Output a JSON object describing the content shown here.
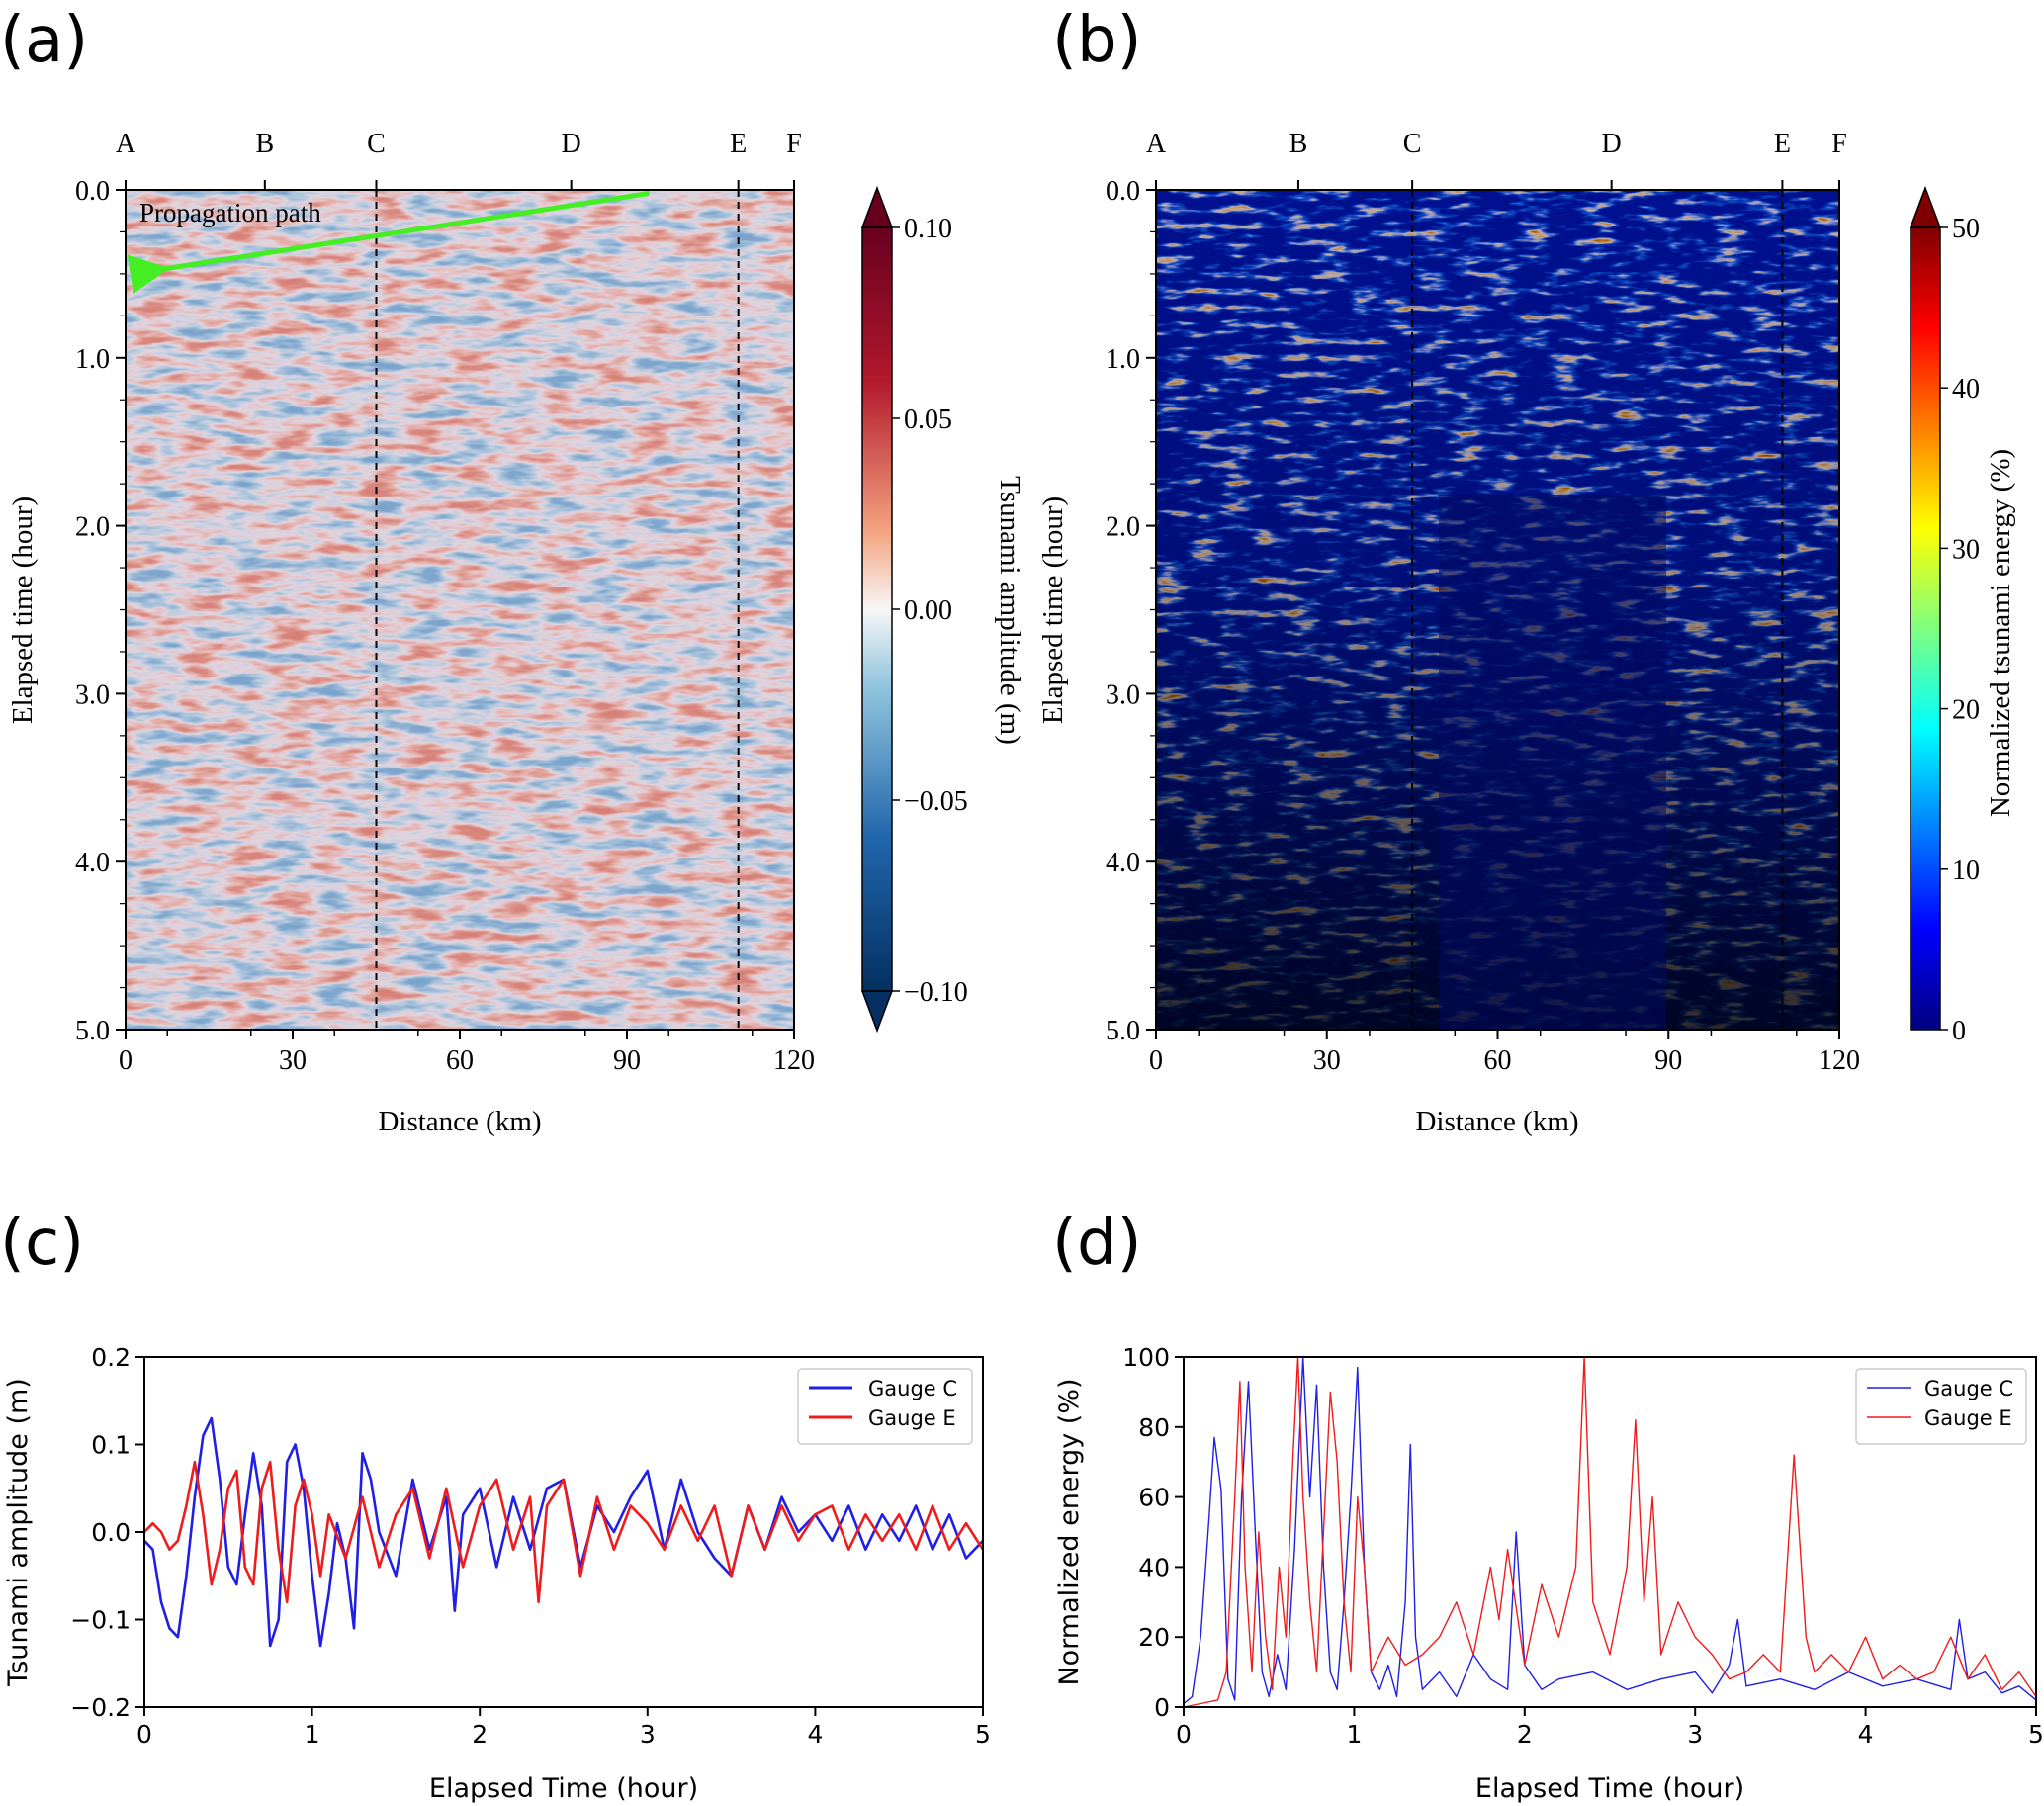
{
  "colors": {
    "gauge_c": "#1f1fe6",
    "gauge_e": "#f01c1c",
    "arrow": "#44ee22",
    "axis": "#000000"
  },
  "chart_data": [
    {
      "panel": "(a)",
      "type": "heatmap",
      "xlabel": "Distance (km)",
      "ylabel": "Elapsed time (hour)",
      "xlim": [
        0,
        120
      ],
      "ylim": [
        5.0,
        0.0
      ],
      "x_ticks": [
        "0",
        "30",
        "60",
        "90",
        "120"
      ],
      "y_ticks": [
        "0.0",
        "1.0",
        "2.0",
        "3.0",
        "4.0",
        "5.0"
      ],
      "station_labels": [
        {
          "name": "A",
          "km": 0
        },
        {
          "name": "B",
          "km": 25
        },
        {
          "name": "C",
          "km": 45
        },
        {
          "name": "D",
          "km": 80
        },
        {
          "name": "E",
          "km": 110
        },
        {
          "name": "F",
          "km": 120
        }
      ],
      "dashed_lines_km": [
        45,
        110
      ],
      "annotation": "Propagation path",
      "arrow": {
        "from_km": 94,
        "from_hour": 0.02,
        "to_km": 1,
        "to_hour": 0.5
      },
      "colorbar": {
        "label": "Tsunami amplitude (m)",
        "ticks": [
          "0.10",
          "0.05",
          "0.00",
          "−0.05",
          "−0.10"
        ],
        "range": [
          -0.1,
          0.1
        ],
        "colormap": "RdBu_r"
      }
    },
    {
      "panel": "(b)",
      "type": "heatmap",
      "xlabel": "Distance (km)",
      "ylabel": "Elapsed time (hour)",
      "xlim": [
        0,
        120
      ],
      "ylim": [
        5.0,
        0.0
      ],
      "x_ticks": [
        "0",
        "30",
        "60",
        "90",
        "120"
      ],
      "y_ticks": [
        "0.0",
        "1.0",
        "2.0",
        "3.0",
        "4.0",
        "5.0"
      ],
      "station_labels": [
        {
          "name": "A",
          "km": 0
        },
        {
          "name": "B",
          "km": 25
        },
        {
          "name": "C",
          "km": 45
        },
        {
          "name": "D",
          "km": 80
        },
        {
          "name": "E",
          "km": 110
        },
        {
          "name": "F",
          "km": 120
        }
      ],
      "dashed_lines_km": [
        45,
        110
      ],
      "colorbar": {
        "label": "Normalized tsunami energy (%)",
        "ticks": [
          "50",
          "40",
          "30",
          "20",
          "10",
          "0"
        ],
        "range": [
          0,
          50
        ],
        "colormap": "jet"
      }
    },
    {
      "panel": "(c)",
      "type": "line",
      "xlabel": "Elapsed Time (hour)",
      "ylabel": "Tsunami amplitude (m)",
      "xlim": [
        0,
        5
      ],
      "ylim": [
        -0.2,
        0.2
      ],
      "x_ticks": [
        "0",
        "1",
        "2",
        "3",
        "4",
        "5"
      ],
      "y_ticks": [
        "0.2",
        "0.1",
        "0.0",
        "−0.1",
        "−0.2"
      ],
      "legend_position": "top-right",
      "series": [
        {
          "name": "Gauge C",
          "x": [
            0,
            0.05,
            0.1,
            0.15,
            0.2,
            0.25,
            0.3,
            0.35,
            0.4,
            0.45,
            0.5,
            0.55,
            0.6,
            0.65,
            0.7,
            0.75,
            0.8,
            0.85,
            0.9,
            0.95,
            1.0,
            1.05,
            1.1,
            1.15,
            1.2,
            1.25,
            1.3,
            1.35,
            1.4,
            1.5,
            1.6,
            1.7,
            1.8,
            1.85,
            1.9,
            2.0,
            2.1,
            2.2,
            2.3,
            2.4,
            2.5,
            2.6,
            2.7,
            2.8,
            2.9,
            3.0,
            3.1,
            3.2,
            3.3,
            3.4,
            3.5,
            3.6,
            3.7,
            3.8,
            3.9,
            4.0,
            4.1,
            4.2,
            4.3,
            4.4,
            4.5,
            4.6,
            4.7,
            4.8,
            4.9,
            5.0
          ],
          "y": [
            -0.01,
            -0.02,
            -0.08,
            -0.11,
            -0.12,
            -0.05,
            0.04,
            0.11,
            0.13,
            0.06,
            -0.04,
            -0.06,
            0.02,
            0.09,
            0.03,
            -0.13,
            -0.1,
            0.08,
            0.1,
            0.05,
            -0.05,
            -0.13,
            -0.07,
            0.01,
            -0.03,
            -0.11,
            0.09,
            0.06,
            0.0,
            -0.05,
            0.06,
            -0.02,
            0.04,
            -0.09,
            0.02,
            0.05,
            -0.04,
            0.04,
            -0.02,
            0.05,
            0.06,
            -0.04,
            0.03,
            0.0,
            0.04,
            0.07,
            -0.02,
            0.06,
            0.0,
            -0.03,
            -0.05,
            0.03,
            -0.02,
            0.04,
            0.0,
            0.02,
            -0.01,
            0.03,
            -0.02,
            0.02,
            -0.01,
            0.03,
            -0.02,
            0.02,
            -0.03,
            -0.01
          ]
        },
        {
          "name": "Gauge E",
          "x": [
            0,
            0.05,
            0.1,
            0.15,
            0.2,
            0.25,
            0.3,
            0.35,
            0.4,
            0.45,
            0.5,
            0.55,
            0.6,
            0.65,
            0.7,
            0.75,
            0.8,
            0.85,
            0.9,
            0.95,
            1.0,
            1.05,
            1.1,
            1.2,
            1.3,
            1.4,
            1.5,
            1.6,
            1.7,
            1.8,
            1.9,
            2.0,
            2.1,
            2.2,
            2.3,
            2.35,
            2.4,
            2.5,
            2.6,
            2.7,
            2.8,
            2.9,
            3.0,
            3.1,
            3.2,
            3.3,
            3.4,
            3.5,
            3.6,
            3.7,
            3.8,
            3.9,
            4.0,
            4.1,
            4.2,
            4.3,
            4.4,
            4.5,
            4.6,
            4.7,
            4.8,
            4.9,
            5.0
          ],
          "y": [
            0.0,
            0.01,
            0.0,
            -0.02,
            -0.01,
            0.03,
            0.08,
            0.02,
            -0.06,
            -0.02,
            0.05,
            0.07,
            -0.04,
            -0.06,
            0.05,
            0.08,
            -0.02,
            -0.08,
            0.03,
            0.06,
            0.02,
            -0.05,
            0.02,
            -0.03,
            0.04,
            -0.04,
            0.02,
            0.05,
            -0.03,
            0.05,
            -0.04,
            0.03,
            0.06,
            -0.02,
            0.04,
            -0.08,
            0.03,
            0.06,
            -0.05,
            0.04,
            -0.02,
            0.03,
            0.01,
            -0.02,
            0.03,
            -0.01,
            0.03,
            -0.05,
            0.03,
            -0.02,
            0.03,
            -0.01,
            0.02,
            0.03,
            -0.02,
            0.02,
            -0.01,
            0.02,
            -0.02,
            0.03,
            -0.02,
            0.01,
            -0.02
          ]
        }
      ]
    },
    {
      "panel": "(d)",
      "type": "line",
      "xlabel": "Elapsed Time (hour)",
      "ylabel": "Normalized energy (%)",
      "xlim": [
        0,
        5
      ],
      "ylim": [
        0,
        100
      ],
      "x_ticks": [
        "0",
        "1",
        "2",
        "3",
        "4",
        "5"
      ],
      "y_ticks": [
        "100",
        "80",
        "60",
        "40",
        "20",
        "0"
      ],
      "legend_position": "top-right",
      "series": [
        {
          "name": "Gauge C",
          "x": [
            0,
            0.05,
            0.1,
            0.15,
            0.18,
            0.22,
            0.26,
            0.3,
            0.34,
            0.38,
            0.42,
            0.46,
            0.5,
            0.55,
            0.6,
            0.65,
            0.7,
            0.74,
            0.78,
            0.82,
            0.86,
            0.9,
            0.94,
            0.98,
            1.02,
            1.06,
            1.1,
            1.15,
            1.2,
            1.25,
            1.3,
            1.33,
            1.36,
            1.4,
            1.5,
            1.6,
            1.7,
            1.8,
            1.9,
            1.95,
            2.0,
            2.1,
            2.2,
            2.4,
            2.6,
            2.8,
            3.0,
            3.1,
            3.2,
            3.25,
            3.3,
            3.5,
            3.7,
            3.9,
            4.1,
            4.3,
            4.5,
            4.55,
            4.6,
            4.7,
            4.8,
            4.9,
            5.0
          ],
          "y": [
            1,
            3,
            20,
            55,
            77,
            62,
            8,
            2,
            60,
            93,
            50,
            10,
            3,
            15,
            5,
            45,
            100,
            60,
            92,
            40,
            10,
            5,
            30,
            60,
            97,
            40,
            10,
            5,
            12,
            3,
            30,
            75,
            20,
            5,
            10,
            3,
            15,
            8,
            5,
            50,
            12,
            5,
            8,
            10,
            5,
            8,
            10,
            4,
            12,
            25,
            6,
            8,
            5,
            10,
            6,
            8,
            5,
            25,
            8,
            10,
            4,
            6,
            2
          ]
        },
        {
          "name": "Gauge E",
          "x": [
            0,
            0.1,
            0.2,
            0.25,
            0.3,
            0.33,
            0.36,
            0.4,
            0.44,
            0.48,
            0.52,
            0.56,
            0.6,
            0.64,
            0.67,
            0.7,
            0.74,
            0.78,
            0.82,
            0.86,
            0.9,
            0.94,
            0.98,
            1.02,
            1.06,
            1.1,
            1.2,
            1.3,
            1.4,
            1.5,
            1.6,
            1.7,
            1.8,
            1.85,
            1.9,
            2.0,
            2.1,
            2.2,
            2.3,
            2.35,
            2.4,
            2.5,
            2.6,
            2.65,
            2.7,
            2.75,
            2.8,
            2.9,
            3.0,
            3.1,
            3.2,
            3.3,
            3.4,
            3.5,
            3.58,
            3.65,
            3.7,
            3.8,
            3.9,
            4.0,
            4.1,
            4.2,
            4.3,
            4.4,
            4.5,
            4.6,
            4.7,
            4.8,
            4.9,
            5.0
          ],
          "y": [
            0,
            1,
            2,
            10,
            60,
            93,
            40,
            10,
            50,
            20,
            5,
            40,
            20,
            70,
            100,
            60,
            30,
            10,
            50,
            90,
            70,
            30,
            10,
            60,
            40,
            10,
            20,
            12,
            15,
            20,
            30,
            15,
            40,
            25,
            45,
            12,
            35,
            20,
            40,
            100,
            30,
            15,
            40,
            82,
            30,
            60,
            15,
            30,
            20,
            15,
            8,
            10,
            15,
            10,
            72,
            20,
            10,
            15,
            10,
            20,
            8,
            12,
            8,
            10,
            20,
            8,
            15,
            5,
            10,
            3
          ]
        }
      ]
    }
  ]
}
